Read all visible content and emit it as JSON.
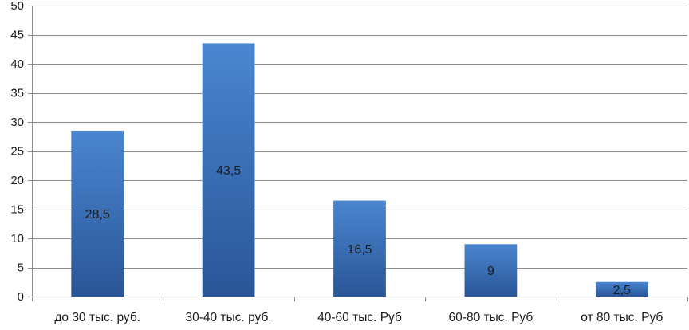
{
  "chart_data": {
    "type": "bar",
    "title": "",
    "xlabel": "",
    "ylabel": "",
    "categories": [
      "до 30 тыс. руб.",
      "30-40 тыс. руб.",
      "40-60 тыс. Руб",
      "60-80 тыс. Руб",
      "от 80 тыс. Руб"
    ],
    "values": [
      28.5,
      43.5,
      16.5,
      9,
      2.5
    ],
    "data_labels": [
      "28,5",
      "43,5",
      "16,5",
      "9",
      "2,5"
    ],
    "ylim": [
      0,
      50
    ],
    "y_ticks": [
      0,
      5,
      10,
      15,
      20,
      25,
      30,
      35,
      40,
      45,
      50
    ],
    "grid": true,
    "legend": "none",
    "colors": {
      "bar_top": "#4a86d0",
      "bar_bottom": "#2a5597",
      "grid": "#8a8a8a",
      "axis": "#8a8a8a",
      "text": "#1a1a1a"
    }
  }
}
